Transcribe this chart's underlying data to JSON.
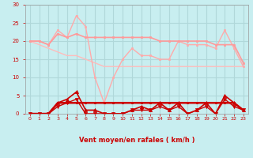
{
  "bg_color": "#c8eef0",
  "grid_color": "#b0d8da",
  "xlabel": "Vent moyen/en rafales ( km/h )",
  "xlabel_color": "#cc0000",
  "ylim": [
    0,
    30
  ],
  "yticks": [
    0,
    5,
    10,
    15,
    20,
    25,
    30
  ],
  "tick_color": "#cc0000",
  "line_rafales": {
    "y": [
      20,
      20,
      19,
      23,
      21,
      27,
      24,
      10,
      3,
      10,
      15,
      18,
      16,
      16,
      15,
      15,
      20,
      19,
      19,
      19,
      18,
      23,
      18,
      13
    ],
    "color": "#ffaaaa",
    "lw": 1.0,
    "marker": "s",
    "ms": 2.0
  },
  "line_moy_smooth": {
    "y": [
      20,
      20,
      19,
      22,
      21,
      22,
      21,
      21,
      21,
      21,
      21,
      21,
      21,
      21,
      20,
      20,
      20,
      20,
      20,
      20,
      19,
      19,
      19,
      14
    ],
    "color": "#ff9999",
    "lw": 1.2,
    "marker": "s",
    "ms": 2.0
  },
  "line_diag": {
    "y": [
      20,
      19,
      18,
      17,
      16,
      16,
      15,
      14,
      13,
      13,
      13,
      13,
      13,
      13,
      13,
      13,
      13,
      13,
      13,
      13,
      13,
      13,
      13,
      13
    ],
    "color": "#ffbbbb",
    "lw": 1.0,
    "marker": null,
    "ms": 0
  },
  "line_vent_max": {
    "y": [
      0,
      0,
      0,
      3,
      4,
      6,
      1,
      1,
      0,
      0,
      0,
      1,
      2,
      1,
      3,
      1,
      3,
      0,
      1,
      3,
      0,
      5,
      3,
      1
    ],
    "color": "#cc0000",
    "lw": 1.2,
    "marker": "^",
    "ms": 3.0
  },
  "line_vent_ref": {
    "y": [
      0,
      0,
      0,
      3,
      3,
      3,
      3,
      3,
      3,
      3,
      3,
      3,
      3,
      3,
      3,
      3,
      3,
      3,
      3,
      3,
      3,
      3,
      3,
      1
    ],
    "color": "#cc0000",
    "lw": 1.8,
    "marker": "s",
    "ms": 2.0
  },
  "line_vent_min": {
    "y": [
      0,
      0,
      0,
      2,
      3,
      4,
      0,
      0,
      0,
      0,
      0,
      1,
      1,
      1,
      2,
      1,
      2,
      0,
      1,
      2,
      0,
      4,
      2,
      1
    ],
    "color": "#cc0000",
    "lw": 1.0,
    "marker": "v",
    "ms": 3.0
  },
  "arrows": [
    "↓",
    "↓",
    "↘",
    "↓",
    "↙",
    "↓",
    "↗",
    "↖",
    "↙",
    "↓",
    "↘",
    "↓",
    "↗",
    "↓",
    "→",
    "↓",
    "↓",
    "↓",
    "↓",
    "↓",
    "↓",
    "↓",
    "↓",
    "↓"
  ]
}
